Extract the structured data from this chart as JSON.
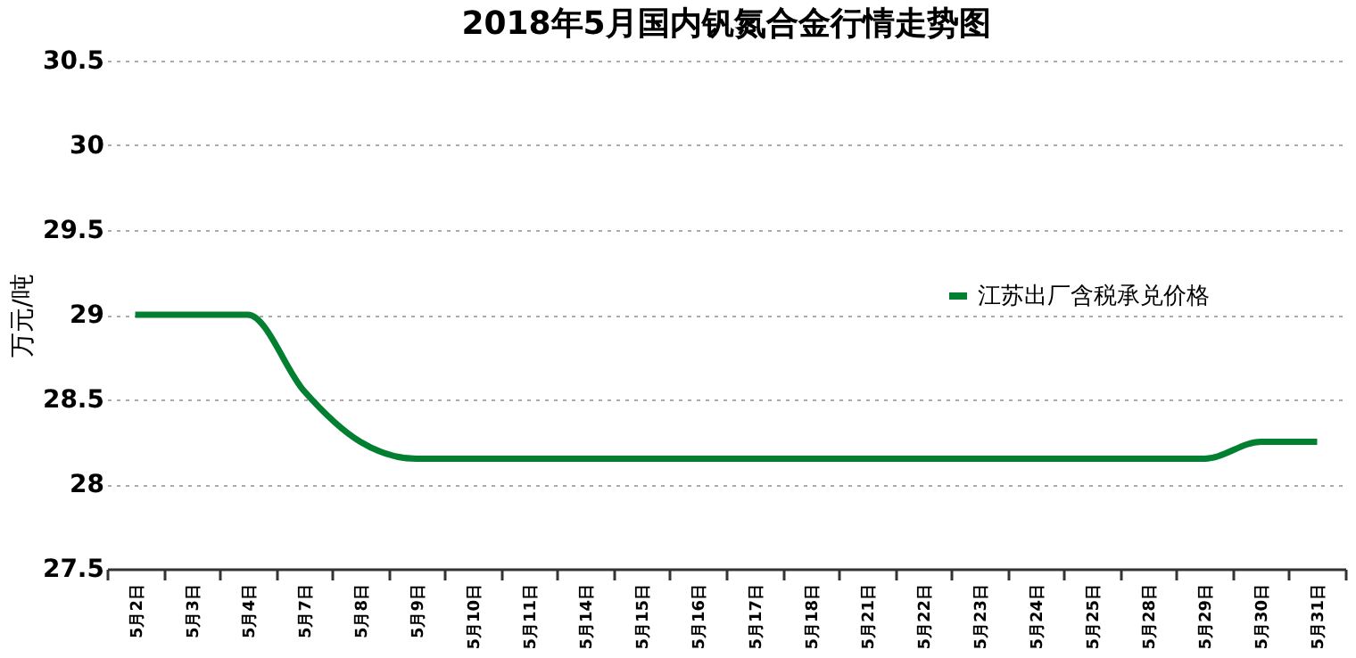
{
  "chart_data": {
    "type": "line",
    "title": "2018年5月国内钒氮合金行情走势图",
    "ylabel": "万元/吨",
    "categories": [
      "5月2日",
      "5月3日",
      "5月4日",
      "5月7日",
      "5月8日",
      "5月9日",
      "5月10日",
      "5月11日",
      "5月14日",
      "5月15日",
      "5月16日",
      "5月17日",
      "5月18日",
      "5月21日",
      "5月22日",
      "5月23日",
      "5月24日",
      "5月25日",
      "5月28日",
      "5月29日",
      "5月30日",
      "5月31日"
    ],
    "series": [
      {
        "name": "江苏出厂含税承兑价格",
        "color": "#037f32",
        "values": [
          29,
          29,
          29,
          28.55,
          28.25,
          28.15,
          28.15,
          28.15,
          28.15,
          28.15,
          28.15,
          28.15,
          28.15,
          28.15,
          28.15,
          28.15,
          28.15,
          28.15,
          28.15,
          28.15,
          28.25,
          28.25
        ]
      }
    ],
    "ylim": [
      27.5,
      30.5
    ],
    "yticks": [
      27.5,
      28,
      28.5,
      29,
      29.5,
      30,
      30.5
    ],
    "grid": "y",
    "legend": "right",
    "marker": "none",
    "line_style": "solid"
  }
}
